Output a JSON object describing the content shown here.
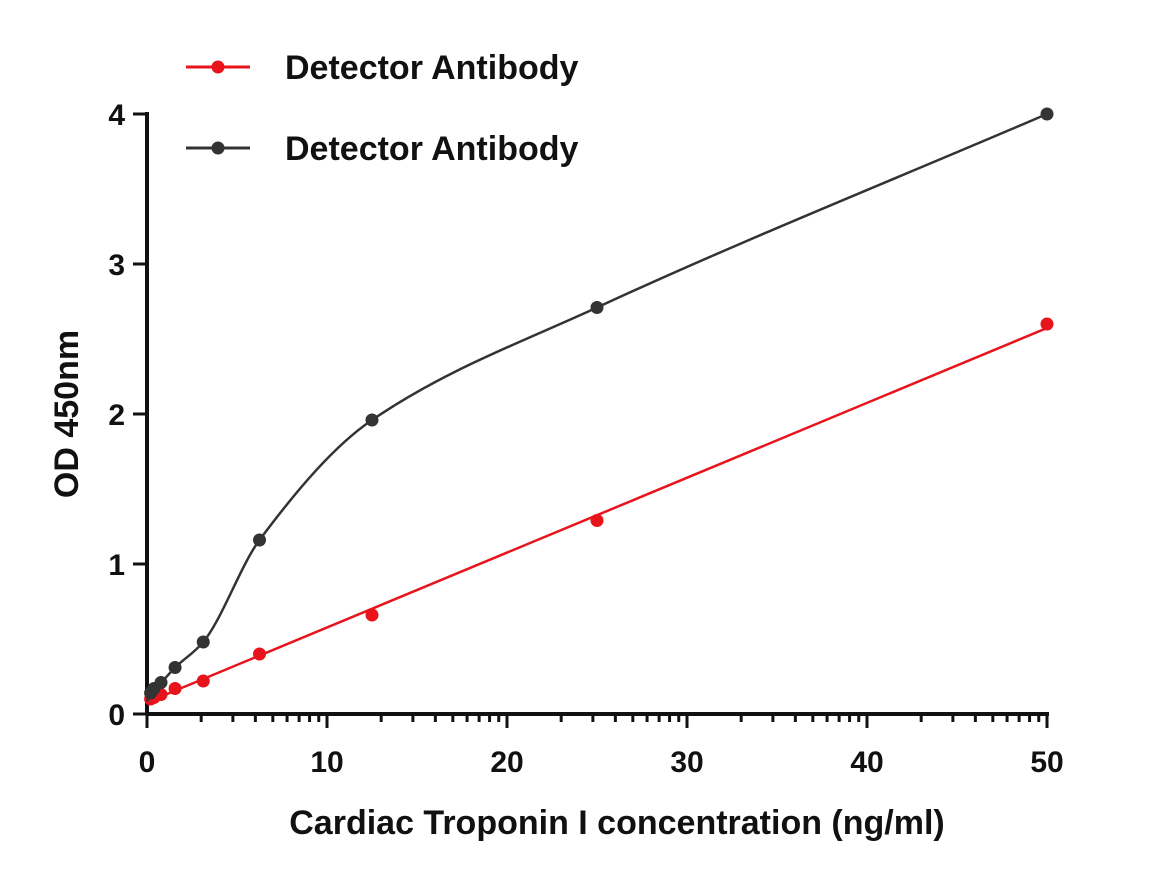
{
  "chart_data": {
    "type": "scatter",
    "title": "",
    "xlabel": "Cardiac Troponin I concentration (ng/ml)",
    "ylabel": "OD 450nm",
    "xlim": [
      0,
      50
    ],
    "ylim": [
      0,
      4
    ],
    "x_ticks": [
      0,
      10,
      20,
      30,
      40,
      50
    ],
    "y_ticks": [
      0,
      1,
      2,
      3,
      4
    ],
    "grid": false,
    "legend_position": "top-left",
    "series": [
      {
        "name": "Detector Antibody",
        "color": "#e8141b",
        "fit": "linear",
        "x": [
          0.2,
          0.39,
          0.78,
          1.56,
          3.125,
          6.25,
          12.5,
          25,
          50
        ],
        "y": [
          0.1,
          0.11,
          0.13,
          0.17,
          0.22,
          0.4,
          0.66,
          1.29,
          2.6
        ]
      },
      {
        "name": "Detector Antibody",
        "color": "#333333",
        "fit": "curve",
        "x": [
          0.2,
          0.39,
          0.78,
          1.56,
          3.125,
          6.25,
          12.5,
          25,
          50
        ],
        "y": [
          0.14,
          0.17,
          0.21,
          0.31,
          0.48,
          1.16,
          1.96,
          2.71,
          4.0
        ]
      }
    ]
  }
}
